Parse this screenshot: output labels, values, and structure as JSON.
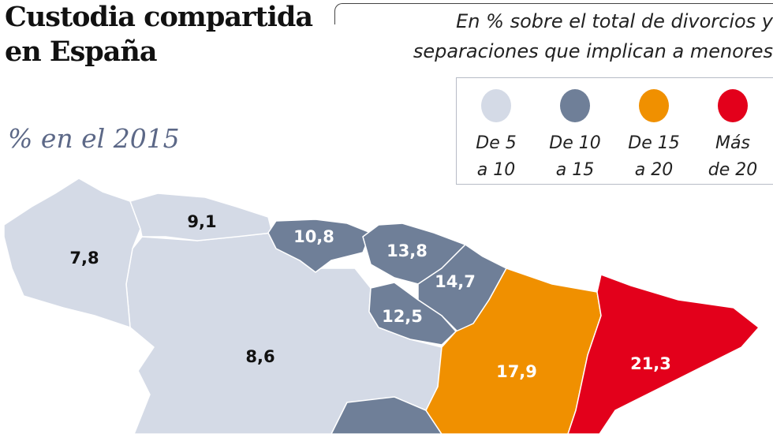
{
  "title": [
    "Custodia compartida",
    "en España"
  ],
  "subtitle": [
    "En % sobre el total de divorcios y",
    "separaciones que implican a menores"
  ],
  "year_label": "% en el 2015",
  "legend": [
    {
      "label1": "De 5",
      "label2": "a 10",
      "color": "#d4dae6"
    },
    {
      "label1": "De 10",
      "label2": "a 15",
      "color": "#6f7f98"
    },
    {
      "label1": "De 15",
      "label2": "a 20",
      "color": "#f09000"
    },
    {
      "label1": "Más",
      "label2": "de 20",
      "color": "#e3001b"
    }
  ],
  "regions": [
    {
      "value": "7,8",
      "class": "De 5 a 10"
    },
    {
      "value": "9,1",
      "class": "De 5 a 10"
    },
    {
      "value": "10,8",
      "class": "De 10 a 15"
    },
    {
      "value": "13,8",
      "class": "De 10 a 15"
    },
    {
      "value": "14,7",
      "class": "De 10 a 15"
    },
    {
      "value": "12,5",
      "class": "De 10 a 15"
    },
    {
      "value": "8,6",
      "class": "De 5 a 10"
    },
    {
      "value": "17,9",
      "class": "De 15 a 20"
    },
    {
      "value": "21,3",
      "class": "Más de 20"
    }
  ]
}
